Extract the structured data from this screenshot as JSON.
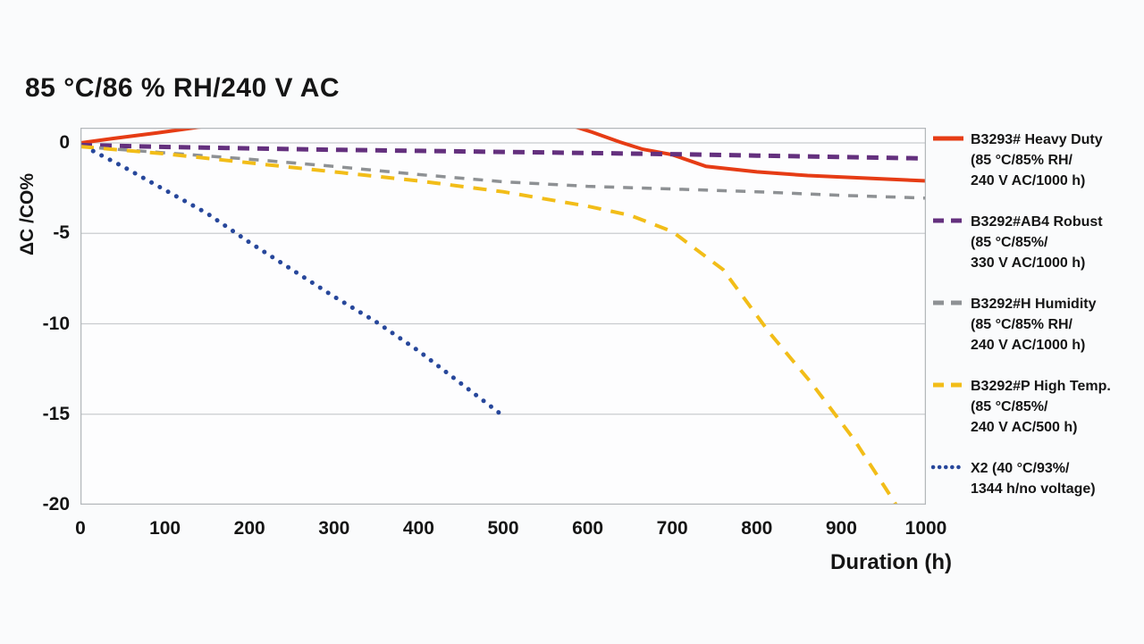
{
  "page": {
    "background": "#fafbfc",
    "plot_background": "#fdfdfe"
  },
  "chart_data": {
    "type": "line",
    "title": "85 °C/86 % RH/240 V AC",
    "xlabel": "Duration (h)",
    "ylabel": "ΔC /CO%",
    "xlim": [
      0,
      1000
    ],
    "ylim": [
      -20,
      0.84
    ],
    "xtick_values": [
      0,
      100,
      200,
      300,
      400,
      500,
      600,
      700,
      800,
      900,
      1000
    ],
    "xtick_labels": [
      "0",
      "100",
      "200",
      "300",
      "400",
      "500",
      "600",
      "700",
      "800",
      "900",
      "1000"
    ],
    "ytick_values": [
      0,
      -5,
      -10,
      -15,
      -20
    ],
    "ytick_labels": [
      "0",
      "-5",
      "-10",
      "-15",
      "-20"
    ],
    "grid": "horizontal-only",
    "legend_position": "right",
    "frame_color": "#b4b8bb",
    "grid_color": "#c9cccf",
    "series": [
      {
        "name": "B3293# Heavy Duty",
        "legend_lines": [
          "B3293# Heavy Duty",
          "(85 °C/85% RH/",
          "240 V AC/1000 h)"
        ],
        "color": "#e63c15",
        "style": "solid",
        "width": 4,
        "note": "curve clipped above plot top between ~150 h and ~585 h",
        "segments": [
          [
            [
              0,
              0
            ],
            [
              40,
              0.25
            ],
            [
              90,
              0.55
            ],
            [
              152,
              0.95
            ]
          ],
          [
            [
              578,
              1.0
            ],
            [
              605,
              0.6
            ],
            [
              638,
              0.05
            ],
            [
              665,
              -0.35
            ],
            [
              700,
              -0.65
            ],
            [
              740,
              -1.3
            ],
            [
              800,
              -1.6
            ],
            [
              860,
              -1.8
            ],
            [
              930,
              -1.95
            ],
            [
              1000,
              -2.1
            ]
          ]
        ]
      },
      {
        "name": "B3292#AB4 Robust",
        "legend_lines": [
          "B3292#AB4 Robust",
          "(85 °C/85%/",
          "330 V AC/1000 h)"
        ],
        "color": "#64307e",
        "style": "dashed",
        "dash": [
          13,
          9
        ],
        "width": 5,
        "segments": [
          [
            [
              0,
              -0.12
            ],
            [
              100,
              -0.22
            ],
            [
              200,
              -0.3
            ],
            [
              300,
              -0.38
            ],
            [
              400,
              -0.44
            ],
            [
              500,
              -0.5
            ],
            [
              600,
              -0.56
            ],
            [
              700,
              -0.62
            ],
            [
              800,
              -0.7
            ],
            [
              900,
              -0.78
            ],
            [
              1000,
              -0.86
            ]
          ]
        ]
      },
      {
        "name": "B3292#H Humidity",
        "legend_lines": [
          "B3292#H Humidity",
          "(85 °C/85% RH/",
          "240 V AC/1000 h)"
        ],
        "color": "#8e9194",
        "style": "dashed",
        "dash": [
          11,
          10
        ],
        "width": 3.5,
        "segments": [
          [
            [
              0,
              -0.2
            ],
            [
              100,
              -0.55
            ],
            [
              200,
              -0.9
            ],
            [
              300,
              -1.3
            ],
            [
              400,
              -1.75
            ],
            [
              500,
              -2.15
            ],
            [
              600,
              -2.4
            ],
            [
              700,
              -2.55
            ],
            [
              800,
              -2.7
            ],
            [
              900,
              -2.9
            ],
            [
              1000,
              -3.05
            ]
          ]
        ]
      },
      {
        "name": "B3292#P High Temp.",
        "legend_lines": [
          "B3292#P High Temp.",
          "(85 °C/85%/",
          "240 V AC/500 h)"
        ],
        "color": "#f2bd18",
        "style": "dashed",
        "dash": [
          15,
          11
        ],
        "width": 4,
        "segments": [
          [
            [
              0,
              -0.2
            ],
            [
              100,
              -0.6
            ],
            [
              200,
              -1.1
            ],
            [
              300,
              -1.6
            ],
            [
              400,
              -2.1
            ],
            [
              500,
              -2.7
            ],
            [
              600,
              -3.5
            ],
            [
              650,
              -4.0
            ],
            [
              700,
              -4.9
            ],
            [
              760,
              -7.0
            ],
            [
              815,
              -10.5
            ],
            [
              865,
              -13.3
            ],
            [
              915,
              -16.4
            ],
            [
              962,
              -19.8
            ],
            [
              972,
              -20.6
            ]
          ]
        ]
      },
      {
        "name": "X2",
        "legend_lines": [
          "X2 (40 °C/93%/",
          "1344 h/no voltage)"
        ],
        "color": "#27479b",
        "style": "dotted",
        "dash": [
          0.1,
          10.5
        ],
        "width": 5,
        "segments": [
          [
            [
              15,
              -0.45
            ],
            [
              50,
              -1.3
            ],
            [
              100,
              -2.6
            ],
            [
              150,
              -3.9
            ],
            [
              200,
              -5.5
            ],
            [
              250,
              -7.0
            ],
            [
              300,
              -8.5
            ],
            [
              350,
              -9.9
            ],
            [
              400,
              -11.5
            ],
            [
              450,
              -13.3
            ],
            [
              503,
              -15.2
            ]
          ]
        ]
      }
    ]
  }
}
